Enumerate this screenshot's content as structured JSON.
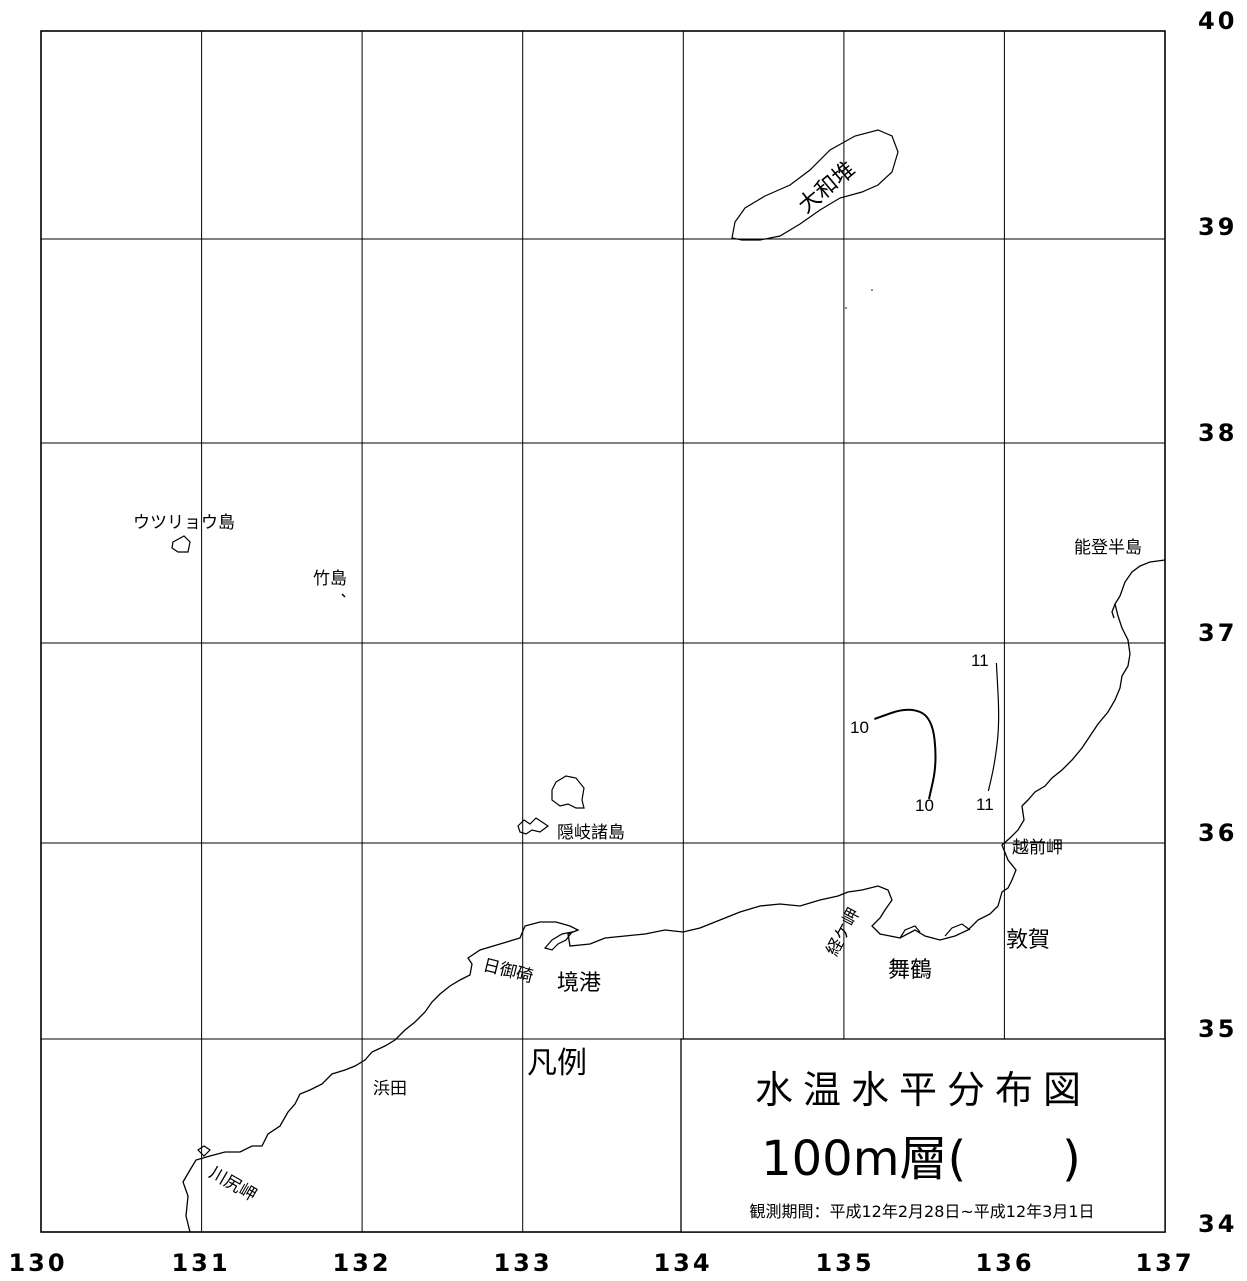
{
  "map": {
    "lon_ticks": [
      "130",
      "131",
      "132",
      "133",
      "134",
      "135",
      "136",
      "137"
    ],
    "lat_ticks": [
      "34",
      "35",
      "36",
      "37",
      "38",
      "39",
      "40"
    ],
    "places": {
      "yamato": "大和堆",
      "ulleung": "ウツリョウ島",
      "takeshima": "竹島",
      "noto": "能登半島",
      "oki": "隠岐諸島",
      "echizen": "越前岬",
      "kyogamisaki": "経ケ岬",
      "tsuruga": "敦賀",
      "maizuru": "舞鶴",
      "hinomisaki": "日御碕",
      "sakaiminato": "境港",
      "hamada": "浜田",
      "kawajiri": "川尻岬"
    },
    "isotherm_labels": {
      "t10_a": "10",
      "t10_b": "10",
      "t11_a": "11",
      "t11_b": "11"
    },
    "isotherms": [
      {
        "value": 10,
        "points": [
          [
            135.19,
            36.62
          ],
          [
            135.4,
            36.68
          ],
          [
            135.55,
            36.63
          ],
          [
            135.58,
            36.4
          ],
          [
            135.53,
            36.22
          ]
        ]
      },
      {
        "value": 11,
        "points": [
          [
            135.95,
            36.9
          ],
          [
            135.97,
            36.6
          ],
          [
            135.94,
            36.4
          ],
          [
            135.9,
            36.26
          ]
        ]
      }
    ]
  },
  "legend": {
    "label": "凡例"
  },
  "title": {
    "main": "水温水平分布図",
    "layer": "100m層(　　)",
    "period": "観測期間：平成12年2月28日~平成12年3月1日"
  }
}
